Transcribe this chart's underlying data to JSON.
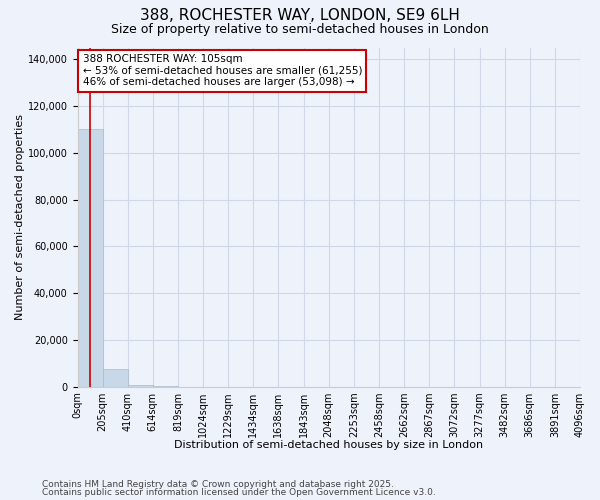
{
  "title": "388, ROCHESTER WAY, LONDON, SE9 6LH",
  "subtitle": "Size of property relative to semi-detached houses in London",
  "xlabel": "Distribution of semi-detached houses by size in London",
  "ylabel": "Number of semi-detached properties",
  "footnote1": "Contains HM Land Registry data © Crown copyright and database right 2025.",
  "footnote2": "Contains public sector information licensed under the Open Government Licence v3.0.",
  "annotation_title": "388 ROCHESTER WAY: 105sqm",
  "annotation_line1": "← 53% of semi-detached houses are smaller (61,255)",
  "annotation_line2": "46% of semi-detached houses are larger (53,098) →",
  "property_size": 105,
  "bar_edges": [
    0,
    205,
    410,
    614,
    819,
    1024,
    1229,
    1434,
    1638,
    1843,
    2048,
    2253,
    2458,
    2662,
    2867,
    3072,
    3277,
    3482,
    3686,
    3891,
    4096
  ],
  "bar_labels": [
    "0sqm",
    "205sqm",
    "410sqm",
    "614sqm",
    "819sqm",
    "1024sqm",
    "1229sqm",
    "1434sqm",
    "1638sqm",
    "1843sqm",
    "2048sqm",
    "2253sqm",
    "2458sqm",
    "2662sqm",
    "2867sqm",
    "3072sqm",
    "3277sqm",
    "3482sqm",
    "3686sqm",
    "3891sqm",
    "4096sqm"
  ],
  "bar_heights": [
    110000,
    7500,
    700,
    200,
    80,
    40,
    20,
    10,
    8,
    5,
    4,
    3,
    2,
    2,
    2,
    1,
    1,
    1,
    1,
    1
  ],
  "bar_color": "#c8d8e8",
  "bar_edge_color": "#aabbcc",
  "vline_color": "#cc0000",
  "vline_x": 105,
  "annotation_box_color": "#cc0000",
  "ylim": [
    0,
    145000
  ],
  "yticks": [
    0,
    20000,
    40000,
    60000,
    80000,
    100000,
    120000,
    140000
  ],
  "grid_color": "#d0d8e8",
  "background_color": "#eef2fa",
  "title_fontsize": 11,
  "subtitle_fontsize": 9,
  "axis_fontsize": 8,
  "tick_fontsize": 7,
  "annotation_fontsize": 7.5,
  "footnote_fontsize": 6.5
}
